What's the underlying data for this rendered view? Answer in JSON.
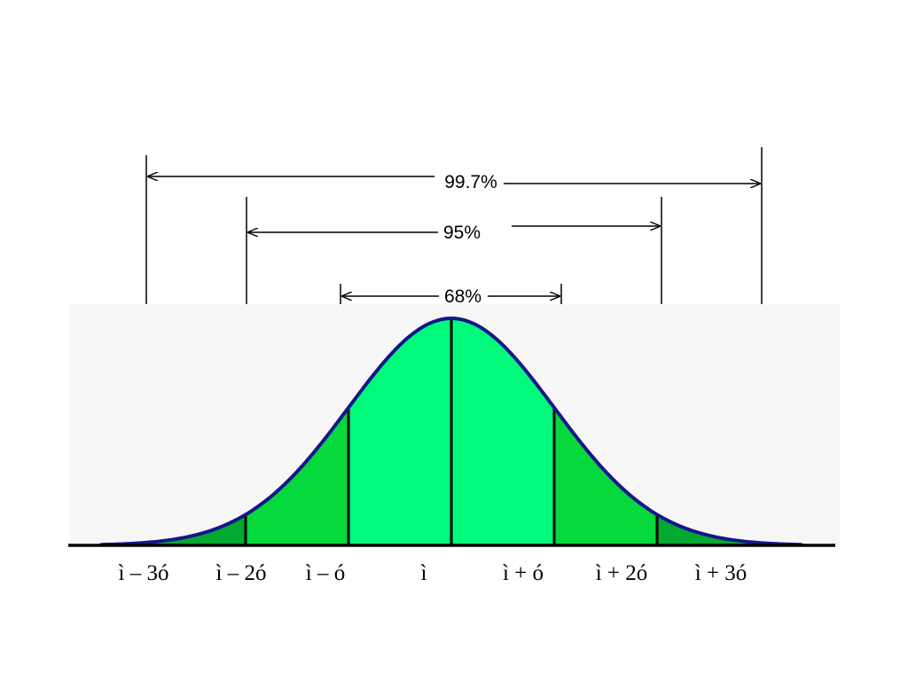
{
  "diagram": {
    "intervals": [
      {
        "label": "99.7%",
        "from_sigma": -3,
        "to_sigma": 3
      },
      {
        "label": "95%",
        "from_sigma": -2,
        "to_sigma": 2
      },
      {
        "label": "68%",
        "from_sigma": -1,
        "to_sigma": 1
      }
    ],
    "axis_labels": [
      "ì – 3ó",
      "ì – 2ó",
      "ì – ó",
      "ì",
      "ì + ó",
      "ì + 2ó",
      "ì + 3ó"
    ],
    "colors": {
      "curve": "#16168a",
      "center_fill": "#00fa7c",
      "mid_fill": "#05d93c",
      "outer_fill": "#04a932",
      "panel_background": "#f7f7f7",
      "lines": "#000000"
    }
  }
}
